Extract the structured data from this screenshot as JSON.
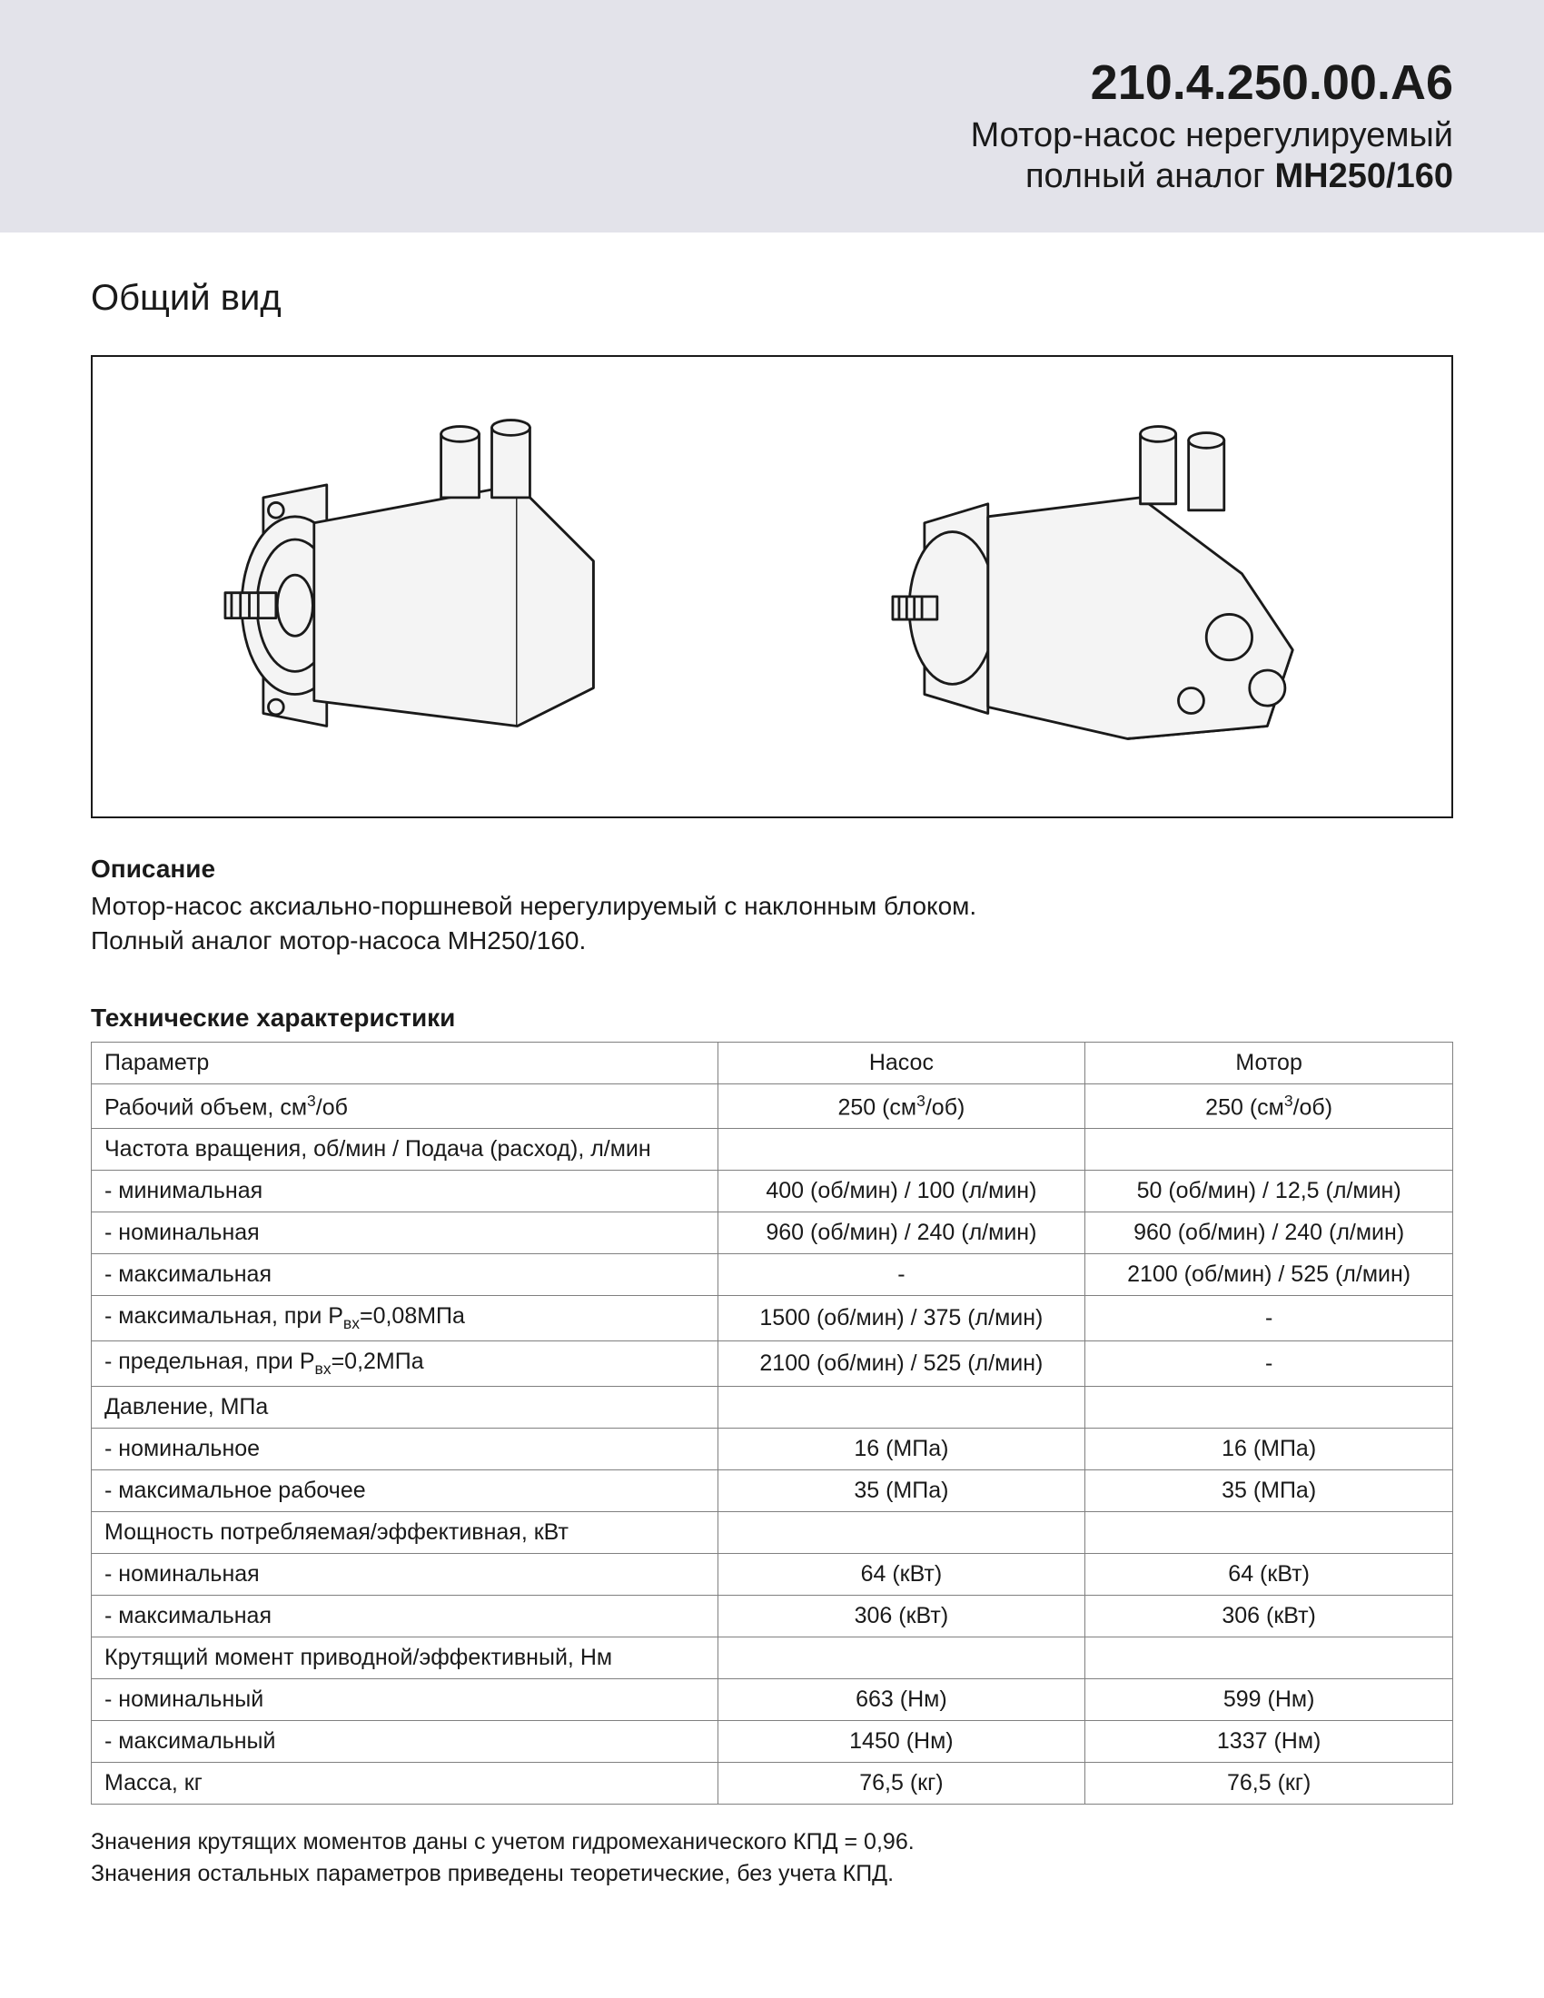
{
  "header": {
    "model": "210.4.250.00.А6",
    "line1": "Мотор-насос нерегулируемый",
    "line2_prefix": "полный аналог ",
    "line2_bold": "МН250/160"
  },
  "section_general_view": "Общий вид",
  "description": {
    "heading": "Описание",
    "line1": "Мотор-насос аксиально-поршневой нерегулируемый с наклонным блоком.",
    "line2": "Полный аналог мотор-насоса МН250/160."
  },
  "specs": {
    "heading": "Технические характеристики",
    "col_param": "Параметр",
    "col_pump": "Насос",
    "col_motor": "Мотор",
    "rows": [
      {
        "p": "Рабочий объем, см³/об",
        "a": "250 (см³/об)",
        "b": "250 (см³/об)",
        "sup3": true
      },
      {
        "p": "Частота вращения, об/мин / Подача (расход), л/мин",
        "a": "",
        "b": "",
        "section": true
      },
      {
        "p": "- минимальная",
        "a": "400 (об/мин) / 100 (л/мин)",
        "b": "50 (об/мин) / 12,5 (л/мин)"
      },
      {
        "p": "- номинальная",
        "a": "960 (об/мин) / 240 (л/мин)",
        "b": "960 (об/мин) / 240 (л/мин)"
      },
      {
        "p": "- максимальная",
        "a": "-",
        "b": "2100 (об/мин) / 525 (л/мин)"
      },
      {
        "p": "- максимальная, при P_вх=0,08МПа",
        "a": "1500 (об/мин) / 375 (л/мин)",
        "b": "-",
        "subvx": true
      },
      {
        "p": "- предельная, при P_вх=0,2МПа",
        "a": "2100 (об/мин) / 525 (л/мин)",
        "b": "-",
        "subvx": true
      },
      {
        "p": "Давление, МПа",
        "a": "",
        "b": "",
        "section": true
      },
      {
        "p": "- номинальное",
        "a": "16 (МПа)",
        "b": "16 (МПа)"
      },
      {
        "p": "- максимальное рабочее",
        "a": "35 (МПа)",
        "b": "35 (МПа)"
      },
      {
        "p": "Мощность потребляемая/эффективная, кВт",
        "a": "",
        "b": "",
        "section": true
      },
      {
        "p": "- номинальная",
        "a": "64 (кВт)",
        "b": "64 (кВт)"
      },
      {
        "p": "- максимальная",
        "a": "306 (кВт)",
        "b": "306 (кВт)"
      },
      {
        "p": "Крутящий момент приводной/эффективный, Нм",
        "a": "",
        "b": "",
        "section": true
      },
      {
        "p": "- номинальный",
        "a": "663 (Нм)",
        "b": "599 (Нм)"
      },
      {
        "p": "- максимальный",
        "a": "1450 (Нм)",
        "b": "1337 (Нм)"
      },
      {
        "p": "Масса, кг",
        "a": "76,5 (кг)",
        "b": "76,5 (кг)"
      }
    ]
  },
  "footnotes": {
    "l1": "Значения крутящих моментов даны с учетом гидромеханического КПД = 0,96.",
    "l2": "Значения остальных параметров приведены теоретические, без учета КПД."
  },
  "style": {
    "header_bg": "#e3e3ea",
    "text_color": "#1a1a1a",
    "border_color": "#808080",
    "box_border": "#1a1a1a"
  }
}
